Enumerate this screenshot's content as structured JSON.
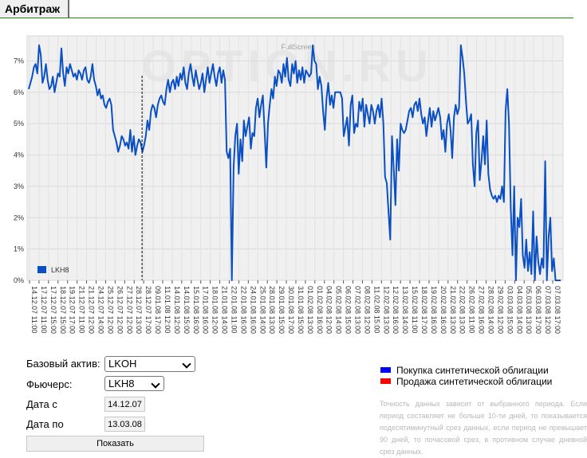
{
  "tab": {
    "label": "Арбитраж"
  },
  "chart_data": {
    "type": "line",
    "fullscreen_label": "FullScreen",
    "watermark": "OPTION.RU",
    "ylim": [
      0,
      7.8
    ],
    "yticks": [
      "0%",
      "1%",
      "2%",
      "3%",
      "4%",
      "5%",
      "6%",
      "7%"
    ],
    "legend": "LKH8",
    "xticks": [
      "14.12.07 11:00",
      "17.12.07 11:00",
      "17.12.07 15:00",
      "18.12.07 15:00",
      "19.12.07 17:00",
      "21.12.07 11:00",
      "21.12.07 12:00",
      "24.12.07 14:00",
      "25.12.07 12:00",
      "26.12.07 12:00",
      "27.12.07 12:00",
      "28.12.07 13:00",
      "28.12.07 17:00",
      "09.01.08 17:00",
      "11.01.08 12:00",
      "14.01.08 12:00",
      "14.01.08 15:00",
      "15.01.08 16:00",
      "17.01.08 16:00",
      "18.01.08 12:00",
      "21.01.08 14:00",
      "22.01.08 11:00",
      "22.01.08 16:00",
      "24.01.08 16:00",
      "25.01.08 14:00",
      "28.01.08 13:00",
      "29.01.08 15:00",
      "30.01.08 17:00",
      "31.01.08 15:00",
      "01.02.08 13:00",
      "01.02.08 16:00",
      "04.02.08 12:00",
      "05.02.08 14:00",
      "06.02.08 15:00",
      "07.02.08 13:00",
      "08.02.08 12:00",
      "11.02.08 15:00",
      "12.02.08 13:00",
      "12.02.08 16:00",
      "13.02.08 14:00",
      "15.02.08 11:00",
      "18.02.08 17:00",
      "19.02.08 16:00",
      "20.02.08 16:00",
      "21.02.08 13:00",
      "22.02.08 13:00",
      "26.02.08 11:00",
      "27.02.08 16:00",
      "28.02.08 14:00",
      "29.02.08 12:00",
      "03.03.08 15:00",
      "04.03.08 14:00",
      "05.03.08 13:00",
      "06.03.08 17:00",
      "07.03.08 12:00",
      "07.03.08 17:00"
    ],
    "series": [
      {
        "name": "LKH8",
        "values": [
          6.1,
          6.3,
          6.5,
          6.8,
          6.9,
          6.6,
          7.5,
          7.2,
          6.3,
          6.5,
          6.9,
          6.4,
          6.1,
          6.2,
          6.5,
          6.0,
          6.3,
          6.6,
          6.5,
          7.4,
          6.6,
          6.2,
          6.8,
          6.6,
          6.9,
          6.7,
          6.5,
          6.6,
          6.4,
          6.7,
          6.6,
          6.4,
          6.7,
          6.8,
          6.4,
          6.3,
          6.5,
          6.9,
          6.4,
          6.2,
          5.9,
          6.1,
          5.8,
          5.9,
          5.6,
          5.5,
          5.7,
          5.8,
          5.6,
          4.8,
          4.6,
          4.4,
          4.1,
          4.3,
          4.6,
          4.5,
          4.3,
          4.4,
          4.2,
          4.8,
          4.1,
          4.6,
          4.0,
          4.3,
          4.5,
          4.4,
          4.1,
          4.3,
          4.6,
          5.1,
          4.8,
          5.4,
          5.6,
          5.5,
          5.2,
          5.6,
          5.8,
          5.9,
          5.7,
          5.6,
          6.1,
          6.4,
          6.0,
          6.3,
          6.4,
          6.1,
          6.5,
          6.2,
          6.6,
          6.4,
          6.8,
          6.3,
          6.1,
          6.6,
          6.9,
          6.5,
          6.2,
          6.7,
          6.4,
          6.1,
          6.3,
          6.6,
          6.0,
          6.4,
          6.8,
          6.3,
          6.6,
          6.9,
          6.5,
          6.2,
          6.6,
          6.8,
          6.3,
          6.7,
          6.4,
          4.1,
          3.9,
          4.2,
          0.0,
          3.6,
          4.6,
          5.0,
          3.4,
          4.5,
          3.8,
          5.1,
          4.6,
          4.9,
          5.2,
          4.2,
          4.7,
          4.6,
          5.5,
          5.8,
          5.2,
          5.6,
          5.9,
          4.8,
          3.6,
          5.0,
          5.6,
          6.1,
          5.8,
          6.5,
          6.2,
          6.7,
          6.6,
          6.3,
          6.9,
          6.5,
          7.1,
          6.4,
          6.2,
          6.9,
          6.6,
          7.0,
          6.3,
          6.7,
          6.4,
          6.8,
          6.3,
          6.7,
          6.6,
          6.5,
          6.6,
          7.5,
          7.0,
          6.9,
          6.1,
          6.5,
          6.2,
          5.4,
          4.8,
          5.8,
          6.3,
          5.6,
          5.9,
          5.5,
          6.0,
          6.0,
          6.0,
          6.0,
          5.8,
          4.6,
          4.9,
          5.2,
          4.3,
          5.6,
          5.9,
          4.7,
          5.0,
          4.9,
          5.7,
          5.4,
          5.8,
          4.9,
          5.6,
          5.3,
          5.0,
          5.6,
          5.4,
          5.0,
          5.4,
          5.6,
          5.2,
          5.8,
          5.0,
          3.3,
          3.1,
          2.2,
          1.3,
          4.6,
          3.6,
          2.4,
          4.5,
          3.5,
          5.0,
          4.8,
          4.7,
          4.8,
          5.1,
          5.4,
          5.5,
          5.2,
          5.6,
          5.7,
          5.4,
          5.8,
          5.3,
          5.0,
          5.2,
          4.6,
          5.1,
          5.5,
          4.9,
          5.4,
          5.1,
          5.3,
          5.5,
          5.2,
          4.5,
          4.8,
          4.1,
          5.0,
          5.3,
          4.8,
          3.9,
          5.2,
          5.6,
          5.3,
          5.5,
          7.5,
          7.1,
          6.6,
          5.7,
          5.0,
          5.1,
          5.3,
          3.7,
          3.0,
          4.7,
          5.1,
          3.2,
          3.8,
          4.6,
          3.7,
          5.1,
          3.4,
          2.9,
          2.7,
          2.6,
          2.7,
          2.5,
          2.7,
          2.6,
          3.0,
          2.5,
          5.4,
          6.1,
          5.0,
          2.3,
          0.8,
          3.0,
          0.0,
          2.0,
          1.7,
          2.6,
          0.8,
          0.4,
          1.3,
          0.3,
          0.9,
          0.2,
          2.2,
          0.0,
          1.4,
          0.6,
          0.2,
          0.7,
          0.4,
          3.8,
          0.0,
          1.4,
          2.0,
          0.3,
          0.7,
          0.0,
          0.0,
          0.0,
          0.0
        ]
      }
    ],
    "marker_x_tick": 12
  },
  "form": {
    "base_asset_label": "Базовый актив:",
    "base_asset_value": "LKOH",
    "futures_label": "Фьючерс:",
    "futures_value": "LKH8",
    "date_from_label": "Дата с",
    "date_from_value": "14.12.07",
    "date_to_label": "Дата по",
    "date_to_value": "13.03.08",
    "show_button": "Показать"
  },
  "legend": {
    "buy_label": "Покупка синтетической облигации",
    "buy_color": "#0000ff",
    "sell_label": "Продажа синтетической облигации",
    "sell_color": "#ff0000"
  },
  "colors": {
    "line": "#0a4fc4"
  },
  "note": "Точность данных зависит от выбранного периода. Если период составляет не больше 10-ти дней, то показывается подесятиминутный срез данных, если период не превышает 90 дней, то почасовой срез, в противном случае дневной срез данных."
}
